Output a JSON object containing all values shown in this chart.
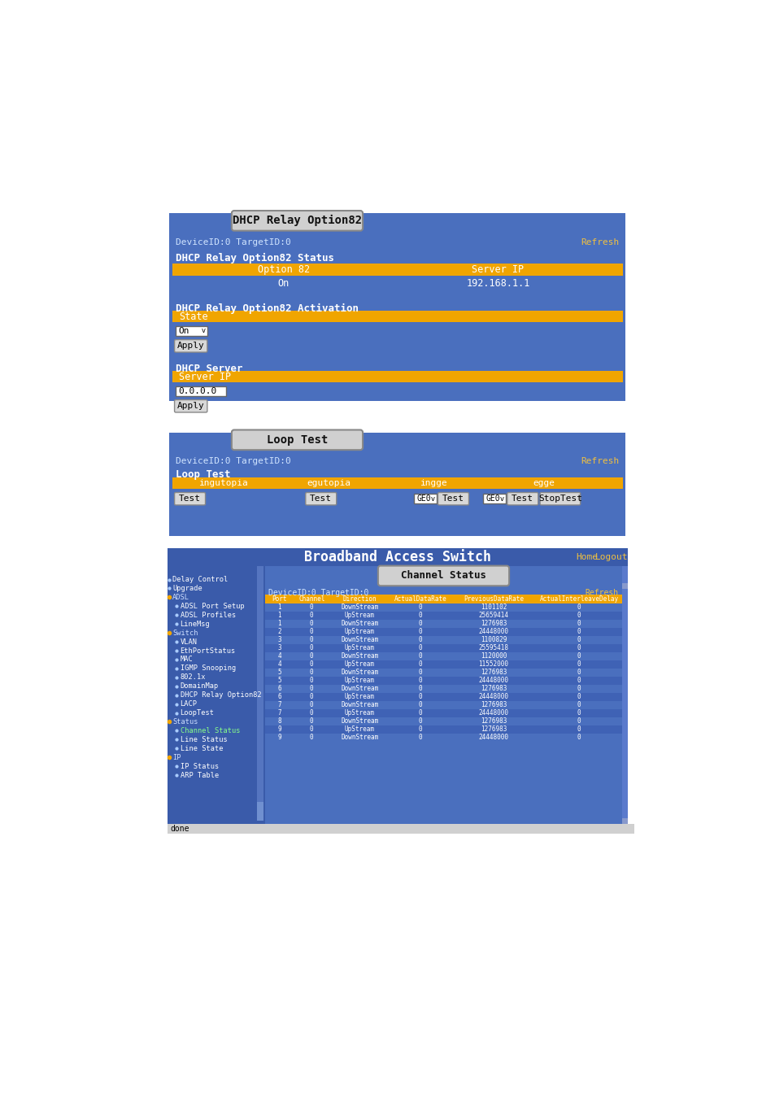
{
  "bg_color": "#ffffff",
  "panel_bg": "#4a6fbe",
  "header_bg": "#f0a500",
  "label_text_color": "#d0e4ff",
  "panel1": {
    "title": "DHCP Relay Option82",
    "device_id": "DeviceID:0 TargetID:0",
    "refresh": "Refresh",
    "section1_title": "DHCP Relay Option82 Status",
    "table1_headers": [
      "Option 82",
      "Server IP"
    ],
    "table1_row": [
      "On",
      "192.168.1.1"
    ],
    "section2_title": "DHCP Relay Option82 Activation",
    "table2_header": "State",
    "dropdown_val": "On",
    "apply_btn": "Apply",
    "section3_title": "DHCP Server",
    "table3_header": "Server IP",
    "input_val": "0.0.0.0",
    "apply_btn2": "Apply"
  },
  "panel2": {
    "title": "Loop Test",
    "device_id": "DeviceID:0 TargetID:0",
    "refresh": "Refresh",
    "section_title": "Loop Test",
    "col_headers": [
      "ingutopia",
      "egutopia",
      "ingge",
      "egge"
    ]
  },
  "panel3": {
    "main_title": "Broadband Access Switch",
    "home": "Home",
    "logout": "Logout",
    "channel_status_title": "Channel Status",
    "device_id": "DeviceID:0 TargetID:0",
    "refresh": "Refresh",
    "table_headers": [
      "Port",
      "Channel",
      "Direction",
      "ActualDataRate",
      "PreviousDataRate",
      "ActualInterleaveDelay"
    ],
    "rows": [
      [
        "1",
        "0",
        "DownStream",
        "0",
        "1101102",
        "0"
      ],
      [
        "1",
        "0",
        "UpStream",
        "0",
        "25659414",
        "0"
      ],
      [
        "1",
        "0",
        "DownStream",
        "0",
        "1276983",
        "0"
      ],
      [
        "2",
        "0",
        "UpStream",
        "0",
        "24448000",
        "0"
      ],
      [
        "3",
        "0",
        "DownStream",
        "0",
        "1100829",
        "0"
      ],
      [
        "3",
        "0",
        "UpStream",
        "0",
        "25595418",
        "0"
      ],
      [
        "4",
        "0",
        "DownStream",
        "0",
        "1120000",
        "0"
      ],
      [
        "4",
        "0",
        "UpStream",
        "0",
        "11552000",
        "0"
      ],
      [
        "5",
        "0",
        "DownStream",
        "0",
        "1276983",
        "0"
      ],
      [
        "5",
        "0",
        "UpStream",
        "0",
        "24448000",
        "0"
      ],
      [
        "6",
        "0",
        "DownStream",
        "0",
        "1276983",
        "0"
      ],
      [
        "6",
        "0",
        "UpStream",
        "0",
        "24448000",
        "0"
      ],
      [
        "7",
        "0",
        "DownStream",
        "0",
        "1276983",
        "0"
      ],
      [
        "7",
        "0",
        "UpStream",
        "0",
        "24448000",
        "0"
      ],
      [
        "8",
        "0",
        "DownStream",
        "0",
        "1276983",
        "0"
      ],
      [
        "9",
        "0",
        "UpStream",
        "0",
        "1276983",
        "0"
      ],
      [
        "9",
        "0",
        "DownStream",
        "0",
        "24448000",
        "0"
      ]
    ],
    "nav_items": [
      [
        "Delay Control",
        false
      ],
      [
        "Upgrade",
        false
      ],
      [
        "ADSL",
        true
      ],
      [
        "ADSL Port Setup",
        false
      ],
      [
        "ADSL Profiles",
        false
      ],
      [
        "LineMsg",
        false
      ],
      [
        "Switch",
        true
      ],
      [
        "VLAN",
        false
      ],
      [
        "EthPortStatus",
        false
      ],
      [
        "MAC",
        false
      ],
      [
        "IGMP Snooping",
        false
      ],
      [
        "802.1x",
        false
      ],
      [
        "DomainMap",
        false
      ],
      [
        "DHCP Relay Option82",
        false
      ],
      [
        "LACP",
        false
      ],
      [
        "LoopTest",
        false
      ],
      [
        "Status",
        true
      ],
      [
        "Channel Status",
        false
      ],
      [
        "Line Status",
        false
      ],
      [
        "Line State",
        false
      ],
      [
        "IP",
        true
      ],
      [
        "IP Status",
        false
      ],
      [
        "ARP Table",
        false
      ]
    ]
  }
}
